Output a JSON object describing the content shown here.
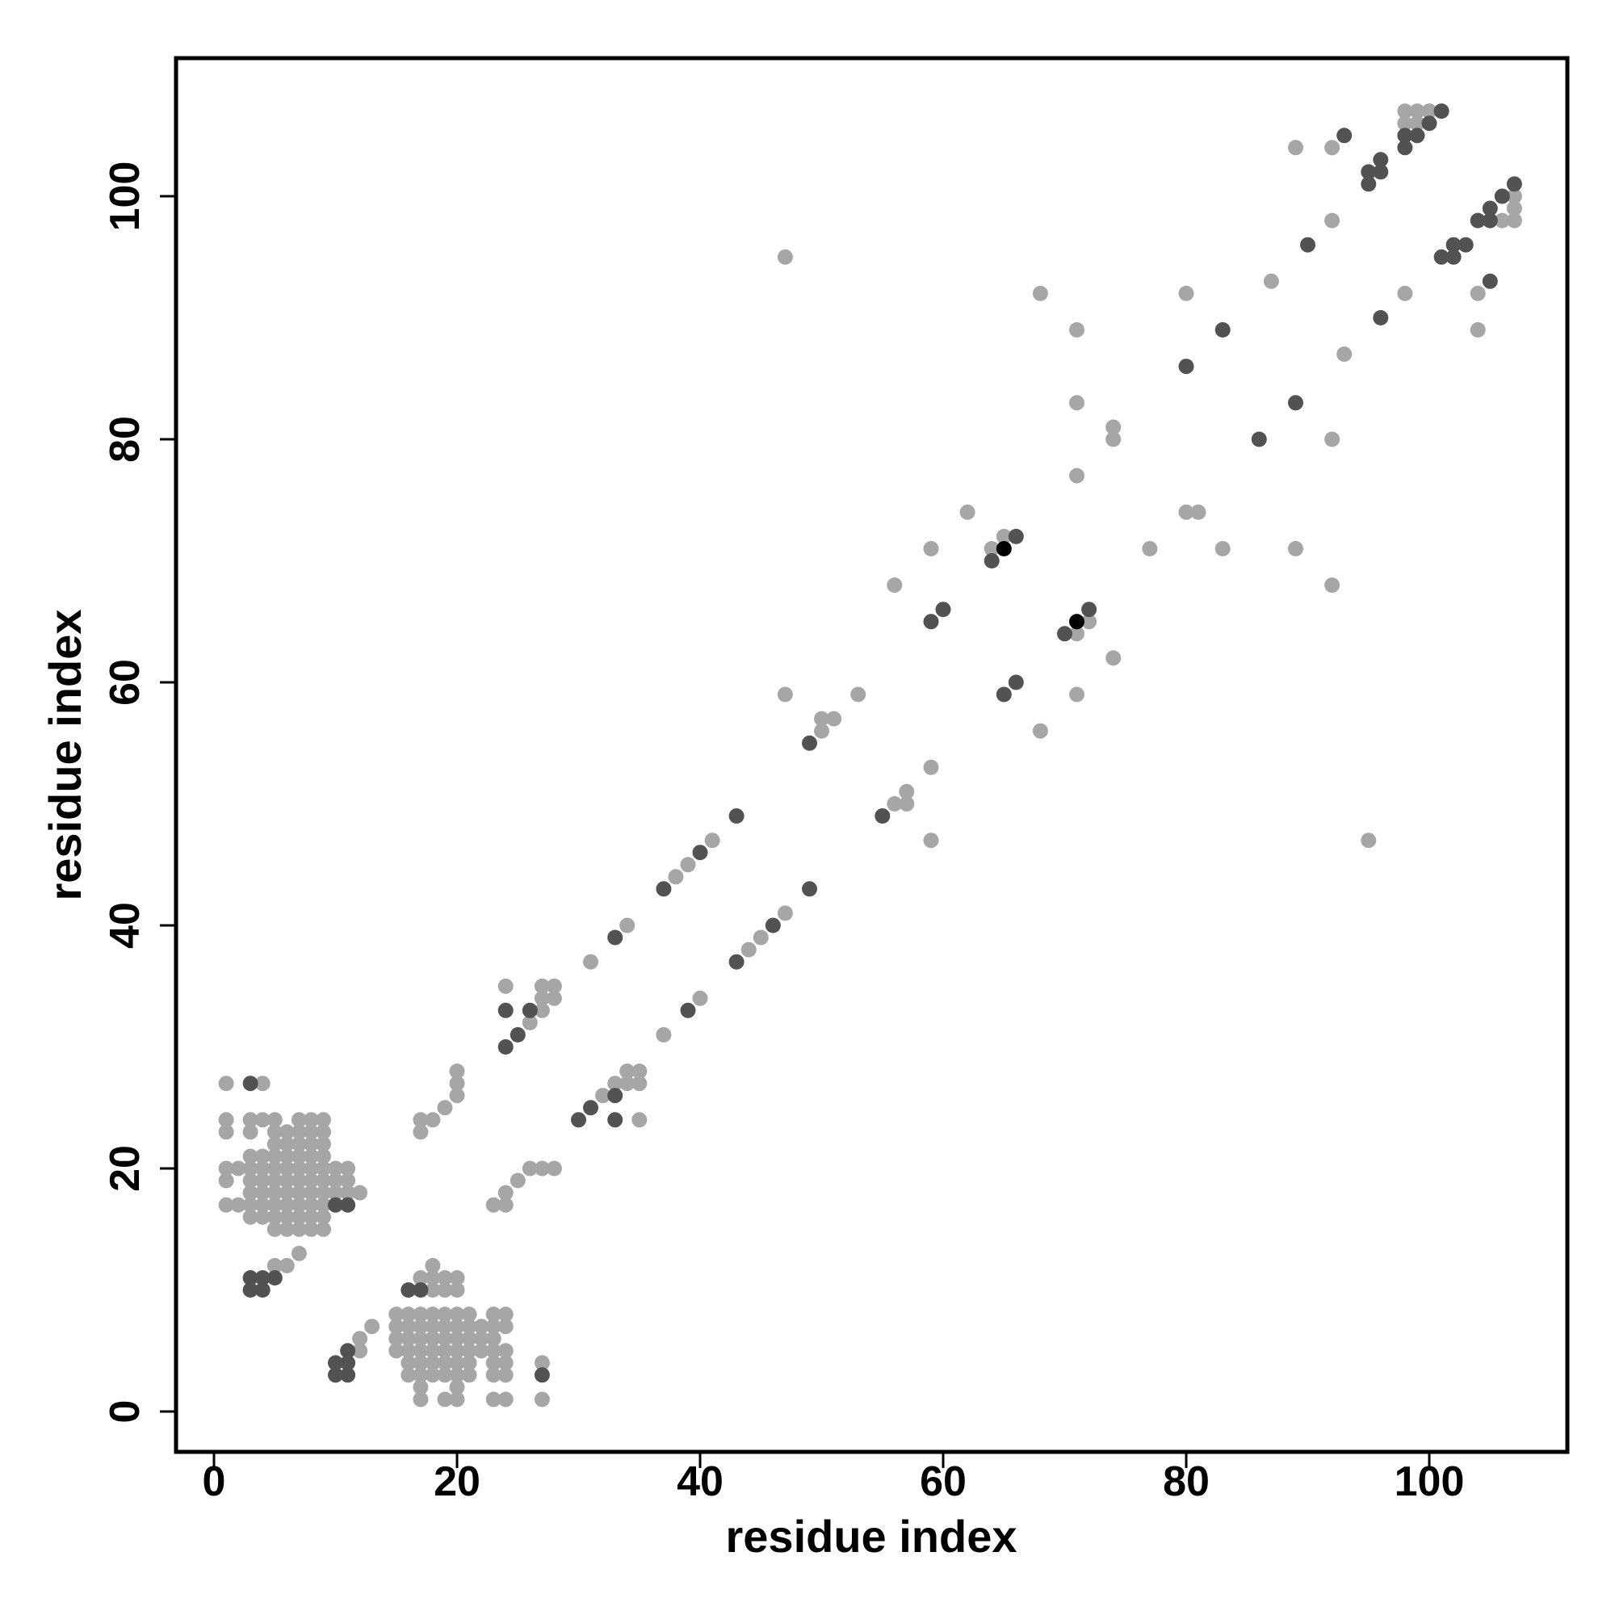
{
  "chart_data": {
    "type": "scatter",
    "title": "",
    "xlabel": "residue index",
    "ylabel": "residue index",
    "xlim": [
      -3,
      111
    ],
    "ylim": [
      -3,
      111
    ],
    "xticks": [
      0,
      20,
      40,
      60,
      80,
      100
    ],
    "yticks": [
      0,
      20,
      40,
      60,
      80,
      100
    ],
    "grid": false,
    "colors": {
      "light": "#a6a6a6",
      "dark": "#525252",
      "black": "#000000"
    },
    "series": [
      {
        "color": "light",
        "points": [
          [
            1,
            27
          ],
          [
            4,
            27
          ],
          [
            1,
            24
          ],
          [
            1,
            23
          ],
          [
            3,
            24
          ],
          [
            3,
            23
          ],
          [
            4,
            24
          ],
          [
            5,
            24
          ],
          [
            8,
            24
          ],
          [
            8,
            23
          ],
          [
            7,
            24
          ],
          [
            7,
            23
          ],
          [
            9,
            24
          ],
          [
            9,
            23
          ],
          [
            1,
            20
          ],
          [
            1,
            19
          ],
          [
            1,
            17
          ],
          [
            2,
            20
          ],
          [
            2,
            17
          ],
          [
            3,
            21
          ],
          [
            3,
            20
          ],
          [
            3,
            19
          ],
          [
            3,
            18
          ],
          [
            3,
            17
          ],
          [
            3,
            16
          ],
          [
            4,
            21
          ],
          [
            4,
            20
          ],
          [
            4,
            19
          ],
          [
            4,
            18
          ],
          [
            4,
            17
          ],
          [
            4,
            16
          ],
          [
            5,
            23
          ],
          [
            5,
            22
          ],
          [
            5,
            21
          ],
          [
            5,
            20
          ],
          [
            5,
            19
          ],
          [
            5,
            18
          ],
          [
            5,
            17
          ],
          [
            5,
            16
          ],
          [
            5,
            15
          ],
          [
            6,
            23
          ],
          [
            6,
            22
          ],
          [
            6,
            21
          ],
          [
            6,
            20
          ],
          [
            6,
            19
          ],
          [
            6,
            18
          ],
          [
            6,
            17
          ],
          [
            6,
            16
          ],
          [
            6,
            15
          ],
          [
            7,
            22
          ],
          [
            7,
            21
          ],
          [
            7,
            20
          ],
          [
            7,
            19
          ],
          [
            7,
            18
          ],
          [
            7,
            17
          ],
          [
            7,
            16
          ],
          [
            7,
            15
          ],
          [
            8,
            22
          ],
          [
            8,
            21
          ],
          [
            8,
            20
          ],
          [
            8,
            19
          ],
          [
            8,
            18
          ],
          [
            8,
            17
          ],
          [
            8,
            16
          ],
          [
            8,
            15
          ],
          [
            9,
            22
          ],
          [
            9,
            21
          ],
          [
            9,
            20
          ],
          [
            9,
            19
          ],
          [
            9,
            18
          ],
          [
            9,
            17
          ],
          [
            9,
            16
          ],
          [
            9,
            15
          ],
          [
            10,
            20
          ],
          [
            10,
            19
          ],
          [
            10,
            18
          ],
          [
            11,
            20
          ],
          [
            11,
            19
          ],
          [
            11,
            18
          ],
          [
            12,
            18
          ],
          [
            5,
            12
          ],
          [
            6,
            12
          ],
          [
            7,
            13
          ],
          [
            12,
            6
          ],
          [
            12,
            5
          ],
          [
            13,
            7
          ],
          [
            15,
            8
          ],
          [
            15,
            7
          ],
          [
            15,
            6
          ],
          [
            15,
            5
          ],
          [
            16,
            8
          ],
          [
            16,
            7
          ],
          [
            16,
            6
          ],
          [
            16,
            5
          ],
          [
            16,
            4
          ],
          [
            16,
            3
          ],
          [
            17,
            11
          ],
          [
            17,
            8
          ],
          [
            17,
            7
          ],
          [
            17,
            6
          ],
          [
            17,
            5
          ],
          [
            17,
            4
          ],
          [
            17,
            3
          ],
          [
            17,
            2
          ],
          [
            17,
            1
          ],
          [
            18,
            12
          ],
          [
            18,
            11
          ],
          [
            18,
            10
          ],
          [
            18,
            8
          ],
          [
            18,
            7
          ],
          [
            18,
            6
          ],
          [
            18,
            5
          ],
          [
            18,
            4
          ],
          [
            18,
            3
          ],
          [
            19,
            11
          ],
          [
            19,
            10
          ],
          [
            19,
            8
          ],
          [
            19,
            7
          ],
          [
            19,
            6
          ],
          [
            19,
            5
          ],
          [
            19,
            4
          ],
          [
            19,
            3
          ],
          [
            19,
            1
          ],
          [
            20,
            11
          ],
          [
            20,
            10
          ],
          [
            20,
            8
          ],
          [
            20,
            7
          ],
          [
            20,
            6
          ],
          [
            20,
            5
          ],
          [
            20,
            4
          ],
          [
            20,
            3
          ],
          [
            20,
            2
          ],
          [
            20,
            1
          ],
          [
            21,
            8
          ],
          [
            21,
            7
          ],
          [
            21,
            6
          ],
          [
            21,
            5
          ],
          [
            21,
            4
          ],
          [
            21,
            3
          ],
          [
            22,
            7
          ],
          [
            22,
            6
          ],
          [
            22,
            5
          ],
          [
            23,
            8
          ],
          [
            23,
            7
          ],
          [
            23,
            6
          ],
          [
            23,
            5
          ],
          [
            23,
            4
          ],
          [
            23,
            3
          ],
          [
            23,
            1
          ],
          [
            24,
            8
          ],
          [
            24,
            7
          ],
          [
            24,
            5
          ],
          [
            24,
            4
          ],
          [
            24,
            3
          ],
          [
            24,
            1
          ],
          [
            27,
            4
          ],
          [
            27,
            1
          ],
          [
            17,
            24
          ],
          [
            17,
            23
          ],
          [
            18,
            24
          ],
          [
            19,
            25
          ],
          [
            20,
            28
          ],
          [
            20,
            27
          ],
          [
            20,
            26
          ],
          [
            23,
            17
          ],
          [
            24,
            18
          ],
          [
            24,
            17
          ],
          [
            25,
            19
          ],
          [
            26,
            20
          ],
          [
            27,
            20
          ],
          [
            28,
            20
          ],
          [
            24,
            35
          ],
          [
            26,
            32
          ],
          [
            27,
            35
          ],
          [
            27,
            34
          ],
          [
            27,
            33
          ],
          [
            28,
            35
          ],
          [
            28,
            34
          ],
          [
            31,
            37
          ],
          [
            34,
            40
          ],
          [
            32,
            26
          ],
          [
            33,
            27
          ],
          [
            34,
            28
          ],
          [
            34,
            27
          ],
          [
            35,
            28
          ],
          [
            35,
            27
          ],
          [
            35,
            24
          ],
          [
            37,
            31
          ],
          [
            38,
            44
          ],
          [
            39,
            45
          ],
          [
            40,
            34
          ],
          [
            41,
            47
          ],
          [
            44,
            38
          ],
          [
            45,
            39
          ],
          [
            47,
            41
          ],
          [
            47,
            95
          ],
          [
            47,
            59
          ],
          [
            50,
            56
          ],
          [
            50,
            57
          ],
          [
            51,
            57
          ],
          [
            53,
            59
          ],
          [
            56,
            68
          ],
          [
            56,
            50
          ],
          [
            57,
            51
          ],
          [
            57,
            50
          ],
          [
            59,
            71
          ],
          [
            59,
            53
          ],
          [
            59,
            47
          ],
          [
            62,
            74
          ],
          [
            64,
            71
          ],
          [
            65,
            72
          ],
          [
            68,
            92
          ],
          [
            68,
            56
          ],
          [
            71,
            89
          ],
          [
            71,
            83
          ],
          [
            71,
            77
          ],
          [
            71,
            64
          ],
          [
            71,
            59
          ],
          [
            72,
            65
          ],
          [
            74,
            81
          ],
          [
            74,
            80
          ],
          [
            74,
            62
          ],
          [
            77,
            71
          ],
          [
            80,
            92
          ],
          [
            80,
            74
          ],
          [
            81,
            74
          ],
          [
            83,
            71
          ],
          [
            87,
            93
          ],
          [
            89,
            104
          ],
          [
            89,
            71
          ],
          [
            92,
            104
          ],
          [
            92,
            98
          ],
          [
            92,
            80
          ],
          [
            92,
            68
          ],
          [
            93,
            87
          ],
          [
            95,
            47
          ],
          [
            98,
            92
          ],
          [
            98,
            107
          ],
          [
            98,
            106
          ],
          [
            99,
            107
          ],
          [
            99,
            106
          ],
          [
            100,
            107
          ],
          [
            104,
            92
          ],
          [
            104,
            89
          ],
          [
            106,
            98
          ],
          [
            107,
            100
          ],
          [
            107,
            99
          ],
          [
            107,
            98
          ]
        ]
      },
      {
        "color": "dark",
        "points": [
          [
            3,
            27
          ],
          [
            3,
            11
          ],
          [
            3,
            10
          ],
          [
            4,
            11
          ],
          [
            4,
            10
          ],
          [
            5,
            11
          ],
          [
            10,
            4
          ],
          [
            10,
            3
          ],
          [
            11,
            5
          ],
          [
            11,
            4
          ],
          [
            11,
            3
          ],
          [
            11,
            17
          ],
          [
            10,
            17
          ],
          [
            16,
            10
          ],
          [
            17,
            10
          ],
          [
            27,
            3
          ],
          [
            24,
            33
          ],
          [
            24,
            30
          ],
          [
            25,
            31
          ],
          [
            26,
            33
          ],
          [
            30,
            24
          ],
          [
            31,
            25
          ],
          [
            33,
            39
          ],
          [
            33,
            26
          ],
          [
            33,
            24
          ],
          [
            37,
            43
          ],
          [
            39,
            33
          ],
          [
            40,
            46
          ],
          [
            43,
            49
          ],
          [
            43,
            37
          ],
          [
            46,
            40
          ],
          [
            49,
            55
          ],
          [
            49,
            43
          ],
          [
            55,
            49
          ],
          [
            59,
            65
          ],
          [
            60,
            66
          ],
          [
            64,
            70
          ],
          [
            65,
            59
          ],
          [
            66,
            72
          ],
          [
            66,
            60
          ],
          [
            70,
            64
          ],
          [
            72,
            66
          ],
          [
            80,
            86
          ],
          [
            83,
            89
          ],
          [
            86,
            80
          ],
          [
            89,
            83
          ],
          [
            90,
            96
          ],
          [
            93,
            105
          ],
          [
            96,
            90
          ],
          [
            95,
            102
          ],
          [
            95,
            101
          ],
          [
            96,
            103
          ],
          [
            96,
            102
          ],
          [
            98,
            105
          ],
          [
            98,
            104
          ],
          [
            99,
            105
          ],
          [
            100,
            106
          ],
          [
            101,
            107
          ],
          [
            101,
            95
          ],
          [
            102,
            96
          ],
          [
            102,
            95
          ],
          [
            103,
            96
          ],
          [
            104,
            98
          ],
          [
            105,
            99
          ],
          [
            105,
            98
          ],
          [
            105,
            93
          ],
          [
            106,
            100
          ],
          [
            107,
            101
          ]
        ]
      },
      {
        "color": "black",
        "points": [
          [
            65,
            71
          ],
          [
            71,
            65
          ]
        ]
      }
    ]
  }
}
